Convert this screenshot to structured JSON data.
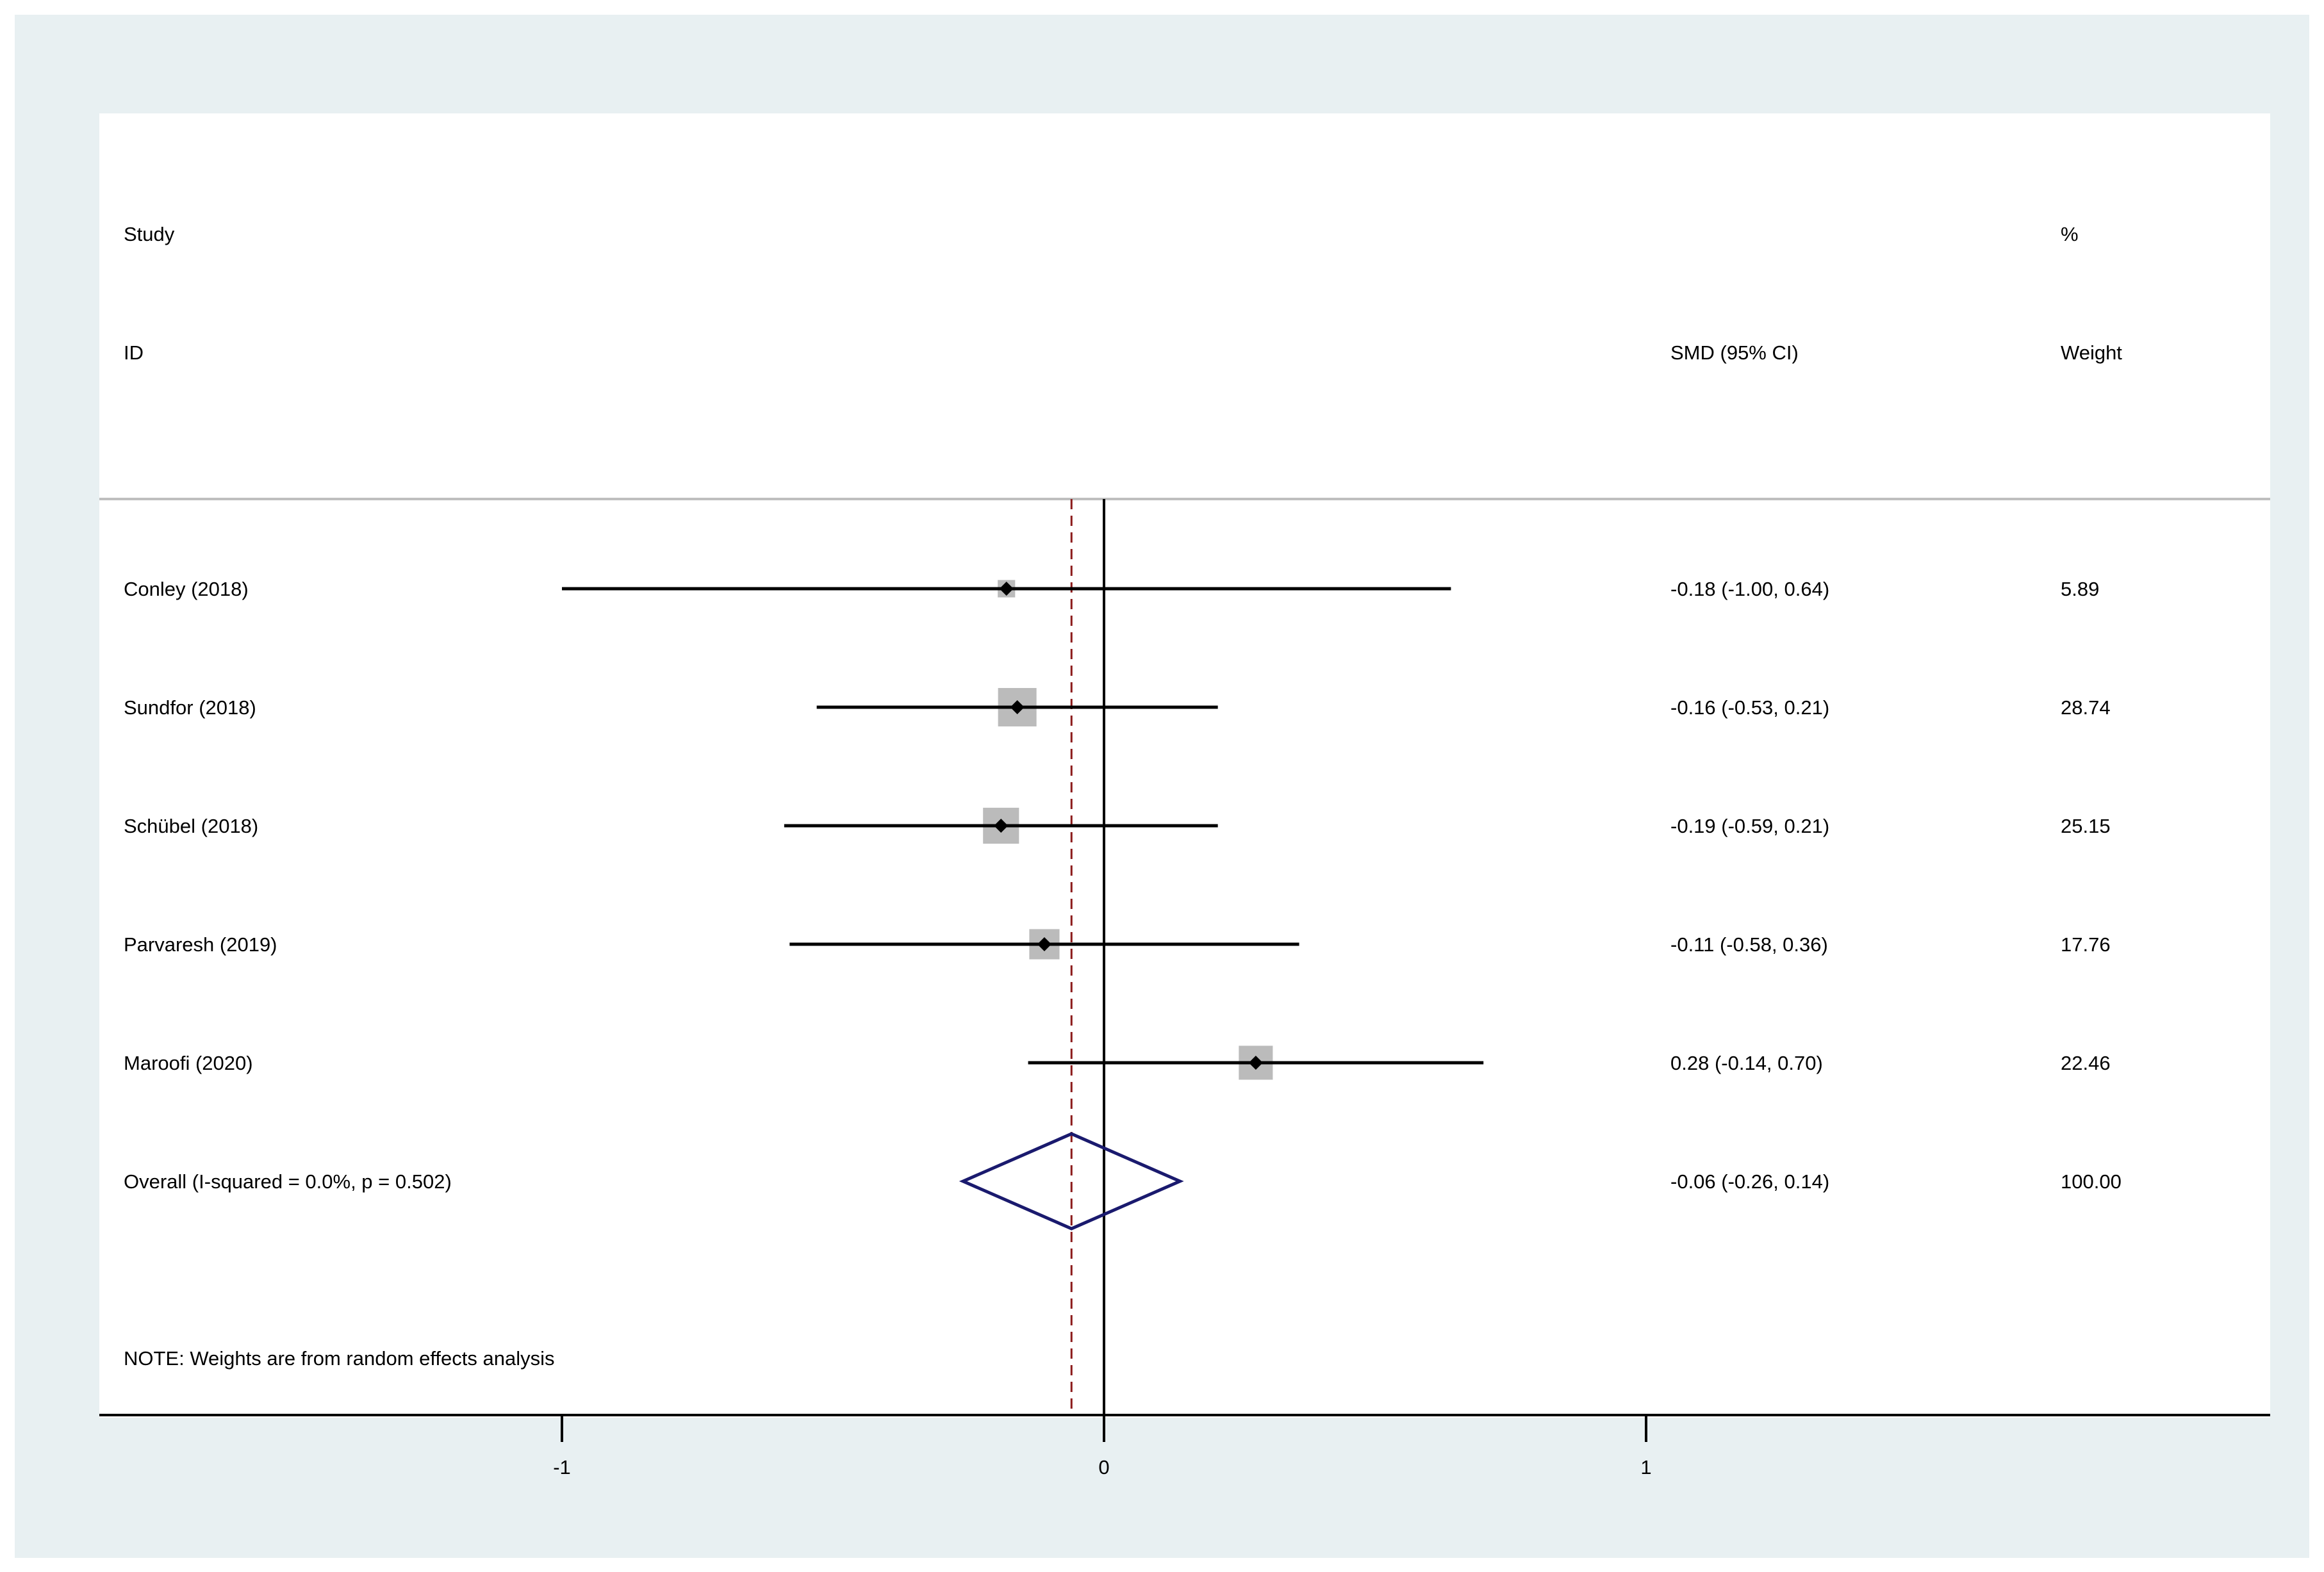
{
  "chart_data": {
    "type": "forest",
    "header": {
      "study_line1": "Study",
      "study_line2": "ID",
      "effect_label": "SMD (95% CI)",
      "weight_line1": "%",
      "weight_line2": "Weight"
    },
    "studies": [
      {
        "label": "Conley  (2018)",
        "estimate": -0.18,
        "lower": -1.0,
        "upper": 0.64,
        "ci_text": "-0.18 (-1.00, 0.64)",
        "weight": 5.89,
        "weight_text": "5.89"
      },
      {
        "label": "Sundfor  (2018)",
        "estimate": -0.16,
        "lower": -0.53,
        "upper": 0.21,
        "ci_text": "-0.16 (-0.53, 0.21)",
        "weight": 28.74,
        "weight_text": "28.74"
      },
      {
        "label": "Schübel  (2018)",
        "estimate": -0.19,
        "lower": -0.59,
        "upper": 0.21,
        "ci_text": "-0.19 (-0.59, 0.21)",
        "weight": 25.15,
        "weight_text": "25.15"
      },
      {
        "label": "Parvaresh (2019)",
        "estimate": -0.11,
        "lower": -0.58,
        "upper": 0.36,
        "ci_text": "-0.11 (-0.58, 0.36)",
        "weight": 17.76,
        "weight_text": "17.76"
      },
      {
        "label": "Maroofi (2020)",
        "estimate": 0.28,
        "lower": -0.14,
        "upper": 0.7,
        "ci_text": "0.28 (-0.14, 0.70)",
        "weight": 22.46,
        "weight_text": "22.46"
      }
    ],
    "overall": {
      "label": "Overall  (I-squared = 0.0%, p = 0.502)",
      "estimate": -0.06,
      "lower": -0.26,
      "upper": 0.14,
      "ci_text": "-0.06 (-0.26, 0.14)",
      "weight_text": "100.00"
    },
    "note": "NOTE: Weights are from random effects analysis",
    "x_axis": {
      "ticks": [
        -1,
        0,
        1
      ],
      "tick_labels": [
        "-1",
        "0",
        "1"
      ],
      "range": [
        -1.85,
        2.15
      ]
    },
    "colors": {
      "ci_line": "#000000",
      "weight_box": "#bbbbbb",
      "point": "#000000",
      "overall_diamond": "#1a1a6e",
      "overall_line": "#8b1a1a",
      "null_line": "#000000",
      "panel_bg": "#e8f0f2"
    }
  }
}
